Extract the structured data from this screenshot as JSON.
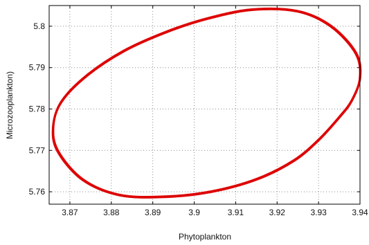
{
  "chart_data": {
    "type": "line",
    "title": "",
    "xlabel": "Phytoplankton",
    "ylabel": "Microzooplankton)",
    "xlim": [
      3.865,
      3.94
    ],
    "ylim": [
      5.757,
      5.805
    ],
    "xticks": [
      3.87,
      3.88,
      3.89,
      3.9,
      3.91,
      3.92,
      3.93,
      3.94
    ],
    "xtick_labels": [
      "3.87",
      "3.88",
      "3.89",
      "3.9",
      "3.91",
      "3.92",
      "3.93",
      "3.94"
    ],
    "yticks": [
      5.76,
      5.77,
      5.78,
      5.79,
      5.8
    ],
    "ytick_labels": [
      "5.76",
      "5.77",
      "5.78",
      "5.79",
      "5.8"
    ],
    "grid": true,
    "series": [
      {
        "color": "#dd0000",
        "shape": "closed-loop",
        "x": [
          3.94,
          3.938,
          3.935,
          3.93,
          3.924,
          3.915,
          3.904,
          3.893,
          3.882,
          3.873,
          3.867,
          3.866,
          3.868,
          3.874,
          3.883,
          3.893,
          3.903,
          3.914,
          3.925,
          3.933,
          3.939,
          3.94
        ],
        "y": [
          5.7875,
          5.782,
          5.778,
          5.7725,
          5.7675,
          5.763,
          5.76,
          5.7588,
          5.7592,
          5.763,
          5.77,
          5.776,
          5.7818,
          5.788,
          5.794,
          5.7985,
          5.8018,
          5.804,
          5.8036,
          5.8,
          5.7935,
          5.7875
        ]
      }
    ]
  }
}
